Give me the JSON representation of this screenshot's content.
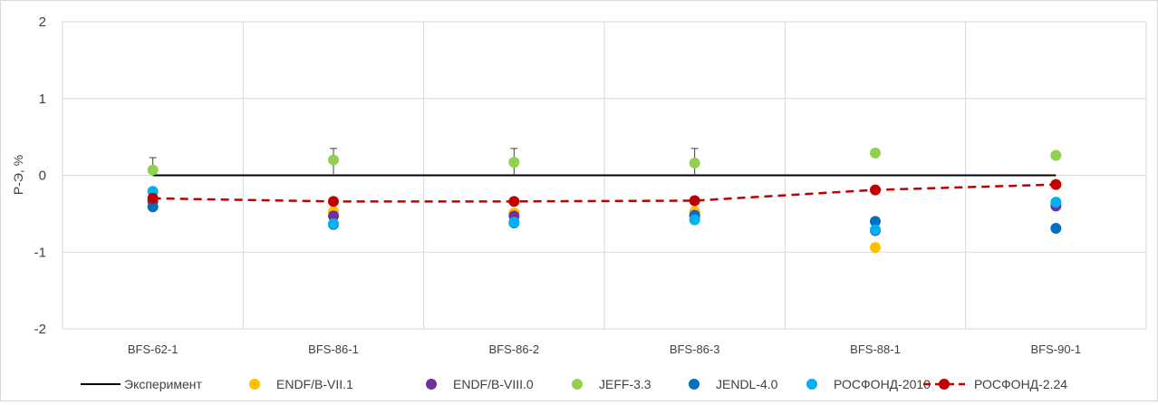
{
  "chart_data": {
    "type": "scatter",
    "title": "",
    "xlabel": "",
    "ylabel": "Р-Э, %",
    "ylim": [
      -2,
      2
    ],
    "yticks": [
      "2",
      "1",
      "0",
      "-1",
      "-2"
    ],
    "grid": true,
    "legend_position": "bottom",
    "categories": [
      "BFS-62-1",
      "BFS-86-1",
      "BFS-86-2",
      "BFS-86-3",
      "BFS-88-1",
      "BFS-90-1"
    ],
    "experiment": {
      "name": "Эксперимент",
      "values": [
        0,
        0,
        0,
        0,
        0,
        0
      ],
      "error_plus": [
        0.23,
        0.35,
        0.35,
        0.35,
        0.0,
        0.0
      ],
      "error_minus": [
        0.0,
        0.0,
        0.0,
        0.0,
        0.0,
        0.0
      ],
      "color": "#000000"
    },
    "series": [
      {
        "name": "ENDF/B-VII.1",
        "values": [
          -0.33,
          -0.47,
          -0.49,
          -0.47,
          -0.94,
          -0.38
        ],
        "color": "#FFC000"
      },
      {
        "name": "ENDF/B-VIII.0",
        "values": [
          -0.34,
          -0.53,
          -0.53,
          -0.52,
          -0.72,
          -0.4
        ],
        "color": "#7030A0"
      },
      {
        "name": "JEFF-3.3",
        "values": [
          0.07,
          0.2,
          0.17,
          0.16,
          0.29,
          0.26
        ],
        "color": "#92D050"
      },
      {
        "name": "JENDL-4.0",
        "values": [
          -0.41,
          -0.64,
          -0.62,
          -0.53,
          -0.6,
          -0.69
        ],
        "color": "#0070C0"
      },
      {
        "name": "РОСФОНД-2010",
        "values": [
          -0.21,
          -0.63,
          -0.61,
          -0.58,
          -0.71,
          -0.35
        ],
        "color": "#00B0F0"
      },
      {
        "name": "РОСФОНД-2.24",
        "values": [
          -0.3,
          -0.34,
          -0.34,
          -0.33,
          -0.19,
          -0.12
        ],
        "color": "#C00000",
        "line": "dashed"
      }
    ]
  }
}
